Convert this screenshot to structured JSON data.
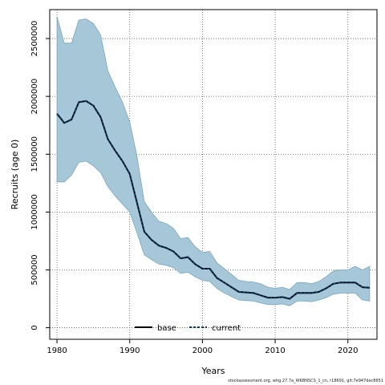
{
  "chart_data": {
    "type": "area",
    "xlabel": "Years",
    "ylabel": "Recruits (age 0)",
    "xlim": [
      1979,
      2024
    ],
    "ylim": [
      -100000,
      2750000
    ],
    "x_ticks": [
      1980,
      1990,
      2000,
      2010,
      2020
    ],
    "y_ticks": [
      0,
      500000,
      1000000,
      1500000,
      2000000,
      2500000
    ],
    "grid": true,
    "legend_position": "bottom-center",
    "colors": {
      "band_fill": "#a6c7d8",
      "band_edge": "#7aa6bd",
      "base": "#000000",
      "current": "#0a3b66"
    },
    "years": [
      1980,
      1981,
      1982,
      1983,
      1984,
      1985,
      1986,
      1987,
      1988,
      1989,
      1990,
      1991,
      1992,
      1993,
      1994,
      1995,
      1996,
      1997,
      1998,
      1999,
      2000,
      2001,
      2002,
      2003,
      2004,
      2005,
      2006,
      2007,
      2008,
      2009,
      2010,
      2011,
      2012,
      2013,
      2014,
      2015,
      2016,
      2017,
      2018,
      2019,
      2020,
      2021,
      2022,
      2023
    ],
    "series": [
      {
        "name": "base",
        "style": "solid",
        "values": [
          1850000,
          1770000,
          1800000,
          1950000,
          1960000,
          1920000,
          1820000,
          1630000,
          1530000,
          1440000,
          1330000,
          1080000,
          830000,
          760000,
          710000,
          690000,
          660000,
          600000,
          610000,
          550000,
          510000,
          510000,
          430000,
          390000,
          350000,
          310000,
          305000,
          300000,
          280000,
          260000,
          260000,
          265000,
          250000,
          300000,
          300000,
          300000,
          310000,
          340000,
          380000,
          390000,
          390000,
          390000,
          350000,
          345000
        ]
      },
      {
        "name": "current",
        "style": "dashed",
        "values": [
          1850000,
          1770000,
          1800000,
          1950000,
          1960000,
          1920000,
          1820000,
          1630000,
          1530000,
          1440000,
          1330000,
          1080000,
          830000,
          760000,
          710000,
          690000,
          660000,
          600000,
          610000,
          550000,
          510000,
          510000,
          430000,
          390000,
          350000,
          310000,
          305000,
          300000,
          280000,
          260000,
          260000,
          265000,
          250000,
          300000,
          300000,
          300000,
          310000,
          340000,
          380000,
          390000,
          390000,
          390000,
          350000,
          345000
        ]
      }
    ],
    "band": {
      "upper": [
        2690000,
        2460000,
        2460000,
        2660000,
        2670000,
        2630000,
        2530000,
        2220000,
        2080000,
        1950000,
        1780000,
        1480000,
        1090000,
        1000000,
        920000,
        900000,
        860000,
        770000,
        780000,
        700000,
        650000,
        660000,
        560000,
        510000,
        460000,
        410000,
        400000,
        395000,
        380000,
        350000,
        340000,
        350000,
        330000,
        390000,
        390000,
        380000,
        400000,
        440000,
        490000,
        500000,
        500000,
        530000,
        500000,
        530000
      ],
      "lower": [
        1260000,
        1260000,
        1320000,
        1430000,
        1440000,
        1400000,
        1340000,
        1220000,
        1140000,
        1070000,
        1000000,
        820000,
        630000,
        590000,
        550000,
        540000,
        520000,
        470000,
        480000,
        440000,
        410000,
        400000,
        340000,
        300000,
        270000,
        240000,
        235000,
        230000,
        215000,
        200000,
        200000,
        205000,
        190000,
        230000,
        230000,
        225000,
        240000,
        260000,
        290000,
        300000,
        300000,
        300000,
        240000,
        230000
      ]
    }
  },
  "footer_text": "stockassessment.org, whg.27.7a_WKBNSCS_1_cn, r18691, git:7e947dec8651"
}
